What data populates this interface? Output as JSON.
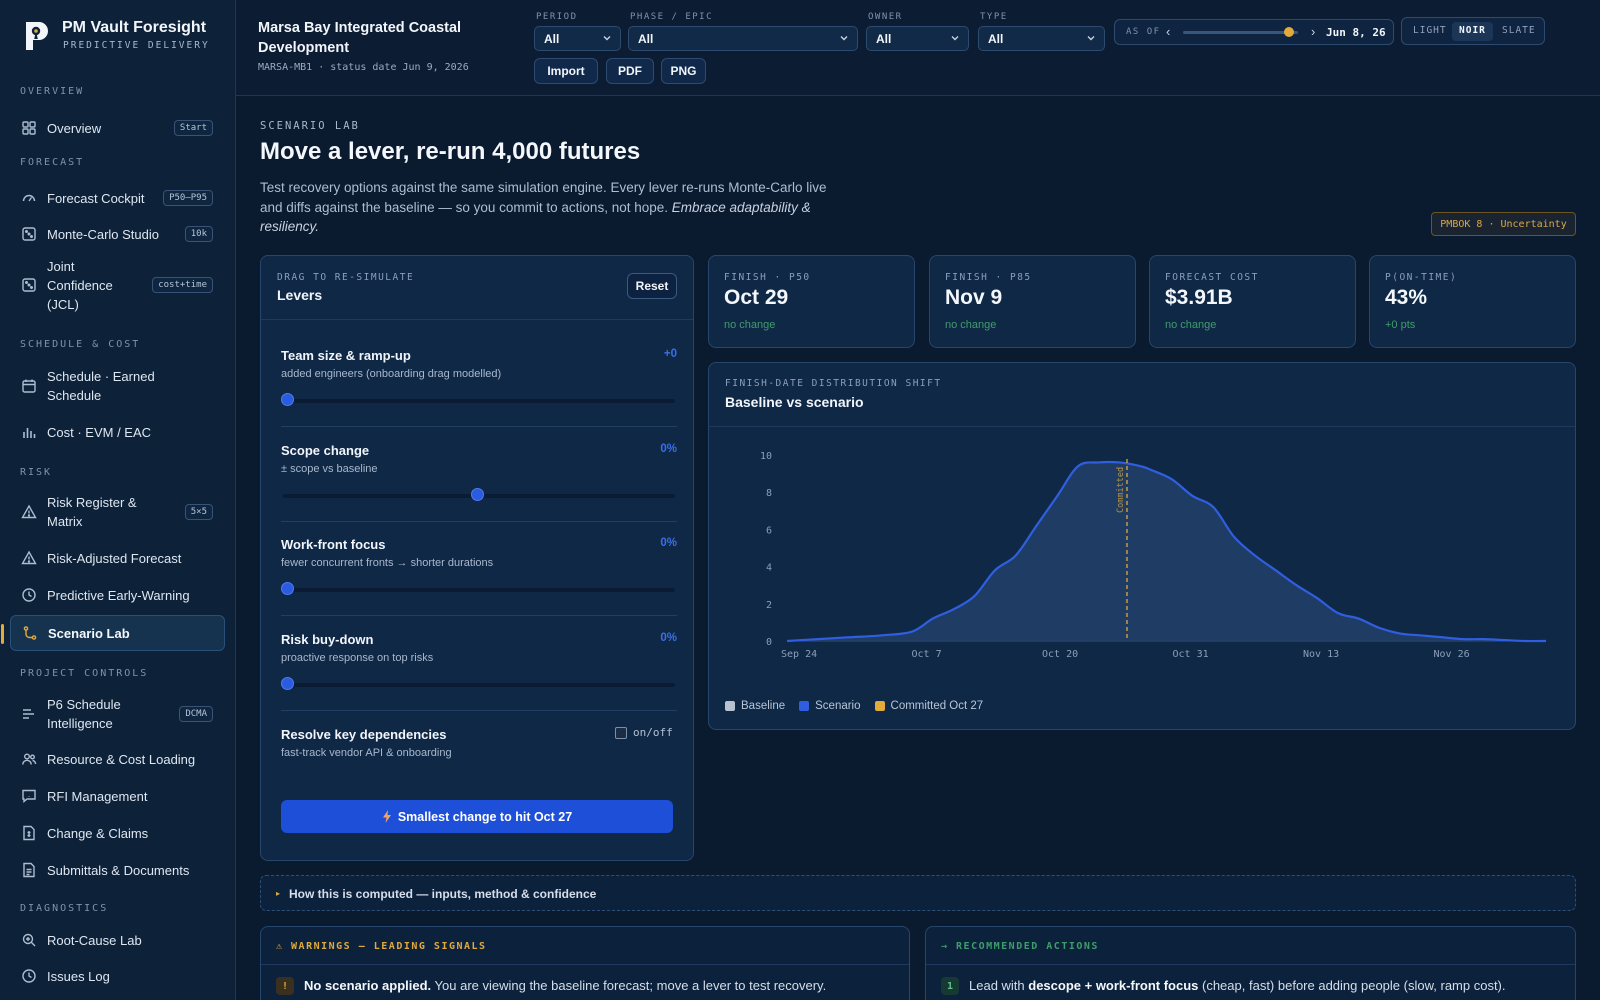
{
  "brand": {
    "title": "PM Vault Foresight",
    "subtitle": "PREDICTIVE DELIVERY"
  },
  "nav": {
    "overview_section": "OVERVIEW",
    "overview": {
      "label": "Overview",
      "badge": "Start"
    },
    "forecast_section": "FORECAST",
    "forecast_cockpit": {
      "label": "Forecast Cockpit",
      "badge": "P50–P95"
    },
    "monte_carlo": {
      "label": "Monte-Carlo Studio",
      "badge": "10k"
    },
    "jcl": {
      "label": "Joint Confidence (JCL)",
      "badge": "cost+time"
    },
    "schedule_section": "SCHEDULE & COST",
    "earned_schedule": {
      "label": "Schedule · Earned Schedule"
    },
    "evm": {
      "label": "Cost · EVM / EAC"
    },
    "risk_section": "RISK",
    "risk_register": {
      "label": "Risk Register & Matrix",
      "badge": "5×5"
    },
    "risk_adjusted": {
      "label": "Risk-Adjusted Forecast"
    },
    "early_warning": {
      "label": "Predictive Early-Warning"
    },
    "scenario_lab": {
      "label": "Scenario Lab"
    },
    "controls_section": "PROJECT CONTROLS",
    "p6": {
      "label": "P6 Schedule Intelligence",
      "badge": "DCMA"
    },
    "resource_loading": {
      "label": "Resource & Cost Loading"
    },
    "rfi": {
      "label": "RFI Management"
    },
    "change_claims": {
      "label": "Change & Claims"
    },
    "submittals": {
      "label": "Submittals & Documents"
    },
    "diagnostics_section": "DIAGNOSTICS",
    "root_cause": {
      "label": "Root-Cause Lab"
    },
    "issues_log": {
      "label": "Issues Log"
    }
  },
  "header": {
    "project_title": "Marsa Bay Integrated Coastal Development",
    "project_meta": "MARSA-MB1 · status date Jun 9, 2026",
    "filters": {
      "period": {
        "label": "PERIOD",
        "value": "All"
      },
      "phase": {
        "label": "PHASE / EPIC",
        "value": "All"
      },
      "owner": {
        "label": "OWNER",
        "value": "All"
      },
      "type": {
        "label": "TYPE",
        "value": "All"
      }
    },
    "buttons": {
      "import": "Import",
      "pdf": "PDF",
      "png": "PNG"
    },
    "as_of": {
      "label": "AS OF",
      "date": "Jun 8, 26",
      "prev": "‹",
      "next": "›",
      "position": 0.92
    },
    "theme": {
      "light": "LIGHT",
      "noir": "NOIR",
      "slate": "SLATE",
      "selected": "NOIR"
    }
  },
  "page": {
    "eyebrow": "SCENARIO LAB",
    "title": "Move a lever, re-run 4,000 futures",
    "intro_main": "Test recovery options against the same simulation engine. Every lever re-runs Monte-Carlo live and diffs against the baseline — so you commit to actions, not hope. ",
    "intro_emph": "Embrace adaptability & resiliency.",
    "pmbok_tag": "PMBOK 8 · Uncertainty"
  },
  "levers": {
    "eyebrow": "DRAG TO RE-SIMULATE",
    "title": "Levers",
    "reset": "Reset",
    "items": [
      {
        "name": "Team size & ramp-up",
        "desc": "added engineers (onboarding drag modelled)",
        "value": "+0",
        "position": 0.0
      },
      {
        "name": "Scope change",
        "desc": "± scope vs baseline",
        "value": "0%",
        "position": 0.5
      },
      {
        "name": "Work-front focus",
        "desc": "fewer concurrent fronts → shorter durations",
        "value": "0%",
        "position": 0.0
      },
      {
        "name": "Risk buy-down",
        "desc": "proactive response on top risks",
        "value": "0%",
        "position": 0.0
      }
    ],
    "dependencies": {
      "name": "Resolve key dependencies",
      "desc": "fast-track vendor API & onboarding",
      "toggle": "on/off",
      "checked": false
    },
    "cta": "Smallest change to hit Oct 27"
  },
  "kpis": [
    {
      "label": "FINISH · P50",
      "value": "Oct 29",
      "delta": "no change"
    },
    {
      "label": "FINISH · P85",
      "value": "Nov 9",
      "delta": "no change"
    },
    {
      "label": "FORECAST COST",
      "value": "$3.91B",
      "delta": "no change"
    },
    {
      "label": "P(ON-TIME)",
      "value": "43%",
      "delta": "+0 pts"
    }
  ],
  "chart_card": {
    "eyebrow": "FINISH-DATE DISTRIBUTION SHIFT",
    "title": "Baseline vs scenario"
  },
  "chart_data": {
    "type": "area",
    "x_ticks": [
      "Sep 24",
      "Oct 7",
      "Oct 20",
      "Oct 31",
      "Nov 13",
      "Nov 26"
    ],
    "y_ticks": [
      0,
      2,
      4,
      6,
      8,
      10
    ],
    "ylim": [
      0,
      10
    ],
    "xlim": [
      0,
      73
    ],
    "x": [
      0,
      3,
      6,
      9,
      12,
      14,
      16,
      18,
      20,
      22,
      24,
      26,
      28,
      30,
      32,
      34,
      35,
      37,
      39,
      41,
      43,
      45,
      47,
      49,
      51,
      53,
      55,
      57,
      59,
      61,
      63,
      65,
      67,
      69,
      71,
      73
    ],
    "series": [
      {
        "name": "Baseline",
        "color": "#b8c3d1",
        "values": [
          0,
          0.1,
          0.2,
          0.3,
          0.5,
          1.2,
          1.7,
          2.4,
          3.8,
          4.6,
          6.2,
          7.8,
          9.4,
          9.6,
          9.6,
          9.4,
          9.2,
          8.7,
          7.8,
          7.2,
          5.6,
          4.6,
          3.8,
          3.0,
          2.3,
          1.5,
          1.2,
          0.7,
          0.4,
          0.3,
          0.2,
          0.1,
          0.1,
          0.05,
          0,
          0
        ]
      },
      {
        "name": "Scenario",
        "color": "#2f5fe0",
        "values": [
          0,
          0.1,
          0.2,
          0.3,
          0.5,
          1.2,
          1.7,
          2.4,
          3.8,
          4.6,
          6.2,
          7.8,
          9.4,
          9.6,
          9.6,
          9.4,
          9.2,
          8.7,
          7.8,
          7.2,
          5.6,
          4.6,
          3.8,
          3.0,
          2.3,
          1.5,
          1.2,
          0.7,
          0.4,
          0.3,
          0.2,
          0.1,
          0.1,
          0.05,
          0,
          0
        ]
      }
    ],
    "committed": {
      "label": "Committed",
      "x": 32.7,
      "color": "#e2a93b"
    },
    "legend": [
      {
        "name": "Baseline",
        "color": "#b8c3d1"
      },
      {
        "name": "Scenario",
        "color": "#2f5fe0"
      },
      {
        "name": "Committed Oct 27",
        "color": "#e2a93b"
      }
    ]
  },
  "how_computed": {
    "marker": "▸",
    "text": "How this is computed — inputs, method & confidence"
  },
  "warnings": {
    "header": "⚠ WARNINGS — LEADING SIGNALS",
    "item_badge": "!",
    "item_bold": "No scenario applied.",
    "item_text": " You are viewing the baseline forecast; move a lever to test recovery."
  },
  "actions": {
    "header": "→ RECOMMENDED ACTIONS",
    "item_badge": "1",
    "item_pre": "Lead with ",
    "item_bold": "descope + work-front focus",
    "item_post": " (cheap, fast) before adding people (slow, ramp cost)."
  }
}
